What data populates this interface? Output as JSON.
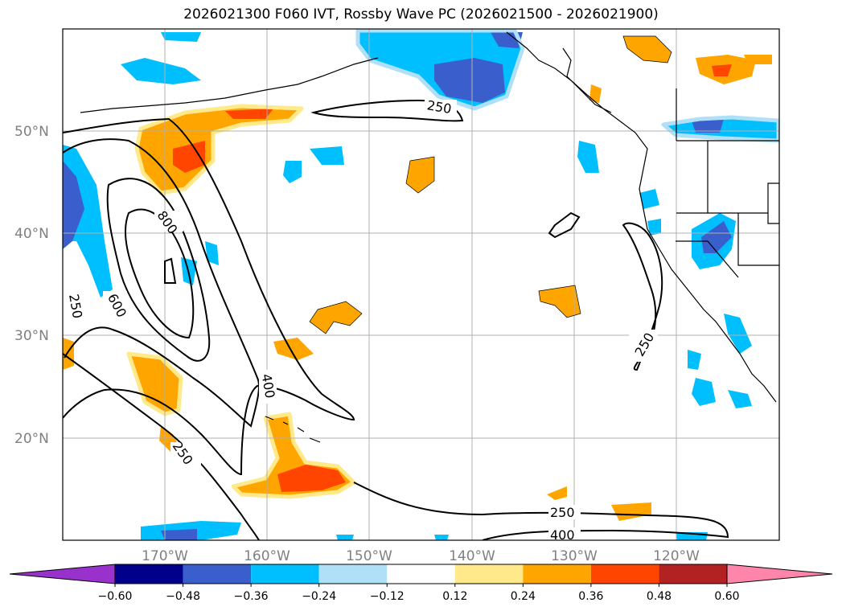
{
  "title": "2026021300 F060 IVT, Rossby Wave PC (2026021500 - 2026021900)",
  "lat_labels": [
    "50°N",
    "40°N",
    "30°N",
    "20°N"
  ],
  "lon_labels": [
    "170°W",
    "160°W",
    "150°W",
    "140°W",
    "130°W",
    "120°W"
  ],
  "contour_labels": [
    "250",
    "800",
    "600",
    "250",
    "400",
    "250",
    "250",
    "250",
    "400"
  ],
  "colorbar": {
    "levels": [
      "−0.60",
      "−0.48",
      "−0.36",
      "−0.24",
      "−0.12",
      "0.12",
      "0.24",
      "0.36",
      "0.48",
      "0.60"
    ],
    "colors": [
      "#9932cc",
      "#00008b",
      "#3a5fcd",
      "#00bfff",
      "#afe0f8",
      "#ffffff",
      "#ffe98a",
      "#ffa500",
      "#ff4500",
      "#b22222",
      "#ff85aa"
    ]
  },
  "map": {
    "lon_range": [
      -180,
      -110
    ],
    "lat_range": [
      10,
      60
    ],
    "variables": [
      "IVT contours",
      "Rossby Wave PC shading"
    ]
  }
}
